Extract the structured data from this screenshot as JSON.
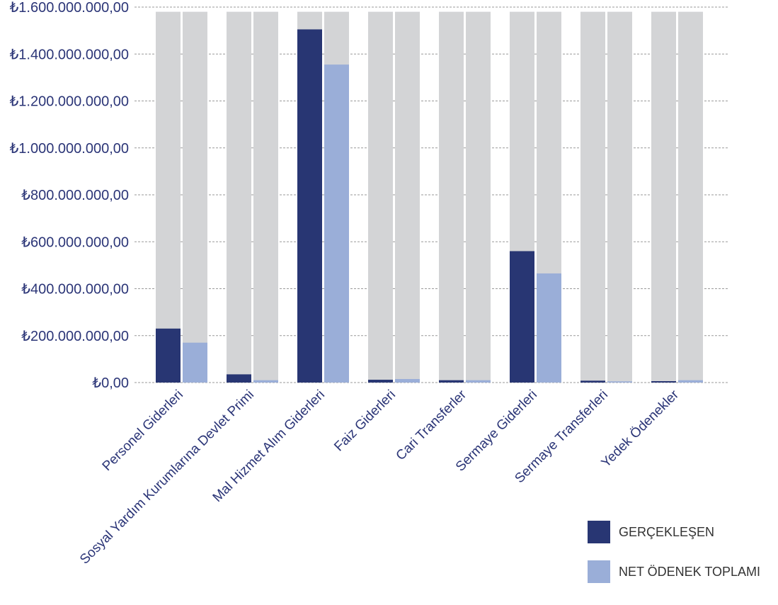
{
  "chart_data": {
    "type": "bar",
    "categories": [
      "Personel Giderleri",
      "Sosyal Yardım Kurumlarına Devlet Primi",
      "Mal Hizmet Alım Giderleri",
      "Faiz Giderleri",
      "Cari Transferler",
      "Sermaye Giderleri",
      "Sermaye Transferleri",
      "Yedek Ödenekler"
    ],
    "series": [
      {
        "name": "GERÇEKLEŞEN",
        "color": "#283673",
        "values": [
          230000000,
          35000000,
          1505000000,
          12000000,
          10000000,
          560000000,
          8000000,
          6000000
        ]
      },
      {
        "name": "NET ÖDENEK TOPLAMI",
        "color": "#9aaed8",
        "values": [
          170000000,
          10000000,
          1355000000,
          15000000,
          10000000,
          465000000,
          5000000,
          10000000
        ]
      }
    ],
    "background_bar_value": 1580000000,
    "background_bar_color": "#d3d4d6",
    "ylim": [
      0,
      1600000000
    ],
    "yticks": [
      "₺0,00",
      "₺200.000.000,00",
      "₺400.000.000,00",
      "₺600.000.000,00",
      "₺800.000.000,00",
      "₺1.000.000.000,00",
      "₺1.200.000.000,00",
      "₺1.400.000.000,00",
      "₺1.600.000.000,00"
    ],
    "grid": true,
    "legend_position": "bottom-right"
  }
}
